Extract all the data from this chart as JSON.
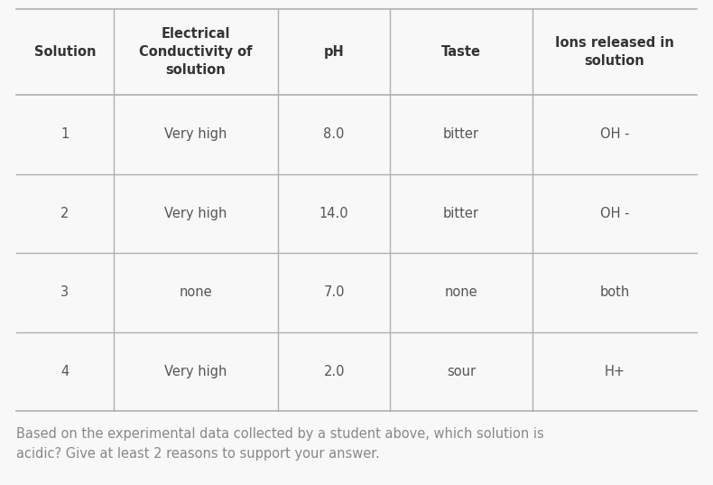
{
  "background_color": "#f8f8f8",
  "table_border_color": "#b0b0b0",
  "header_font_size": 10.5,
  "cell_font_size": 10.5,
  "footer_font_size": 10.5,
  "header_text_color": "#333333",
  "cell_text_color": "#555555",
  "footer_text_color": "#888888",
  "footer_text": "Based on the experimental data collected by a student above, which solution is\nacidic? Give at least 2 reasons to support your answer.",
  "columns": [
    "Solution",
    "Electrical\nConductivity of\nsolution",
    "pH",
    "Taste",
    "Ions released in\nsolution"
  ],
  "col_proportions": [
    0.13,
    0.22,
    0.15,
    0.19,
    0.22
  ],
  "rows": [
    [
      "1",
      "Very high",
      "8.0",
      "bitter",
      "OH -"
    ],
    [
      "2",
      "Very high",
      "14.0",
      "bitter",
      "OH -"
    ],
    [
      "3",
      "none",
      "7.0",
      "none",
      "both"
    ],
    [
      "4",
      "Very high",
      "2.0",
      "sour",
      "H+"
    ]
  ]
}
